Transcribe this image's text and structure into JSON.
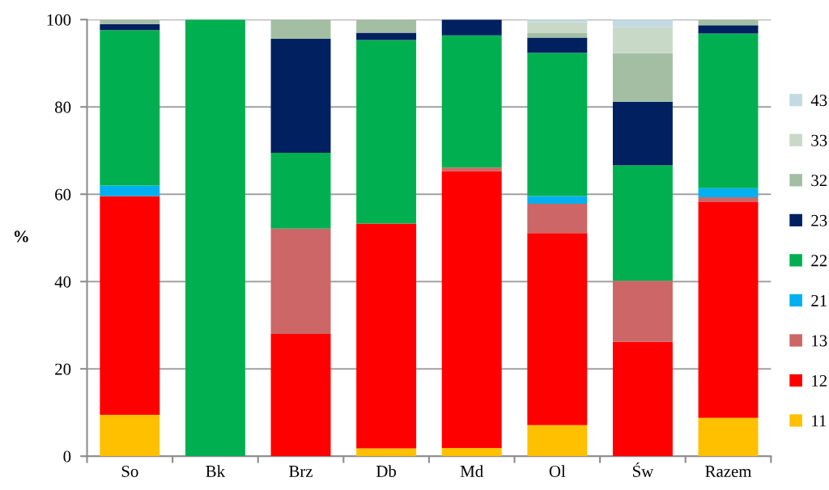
{
  "chart_data": {
    "type": "bar",
    "stacked": true,
    "ylabel": "%",
    "categories": [
      "So",
      "Bk",
      "Brz",
      "Db",
      "Md",
      "Ol",
      "Św",
      "Razem"
    ],
    "series": [
      {
        "name": "11",
        "color": "#ffc000",
        "values": [
          9.5,
          null,
          null,
          1.8,
          1.9,
          7.1,
          null,
          8.8
        ]
      },
      {
        "name": "12",
        "color": "#ff0000",
        "values": [
          50.1,
          null,
          28.0,
          51.5,
          63.4,
          44.0,
          26.2,
          49.4
        ]
      },
      {
        "name": "13",
        "color": "#cd6666",
        "values": [
          null,
          null,
          24.1,
          null,
          0.8,
          6.7,
          14.0,
          1.1
        ]
      },
      {
        "name": "21",
        "color": "#00b0f0",
        "values": [
          2.4,
          null,
          null,
          null,
          null,
          1.8,
          null,
          2.1
        ]
      },
      {
        "name": "22",
        "color": "#00b050",
        "values": [
          35.6,
          100,
          17.4,
          42.0,
          30.3,
          32.8,
          26.4,
          35.4
        ]
      },
      {
        "name": "23",
        "color": "#002060",
        "values": [
          1.4,
          null,
          26.1,
          1.7,
          3.6,
          3.5,
          14.6,
          1.9
        ]
      },
      {
        "name": "32",
        "color": "#a4bea4",
        "values": [
          1.0,
          null,
          4.4,
          3.0,
          null,
          1.0,
          11.1,
          1.3
        ]
      },
      {
        "name": "33",
        "color": "#c8d9c8",
        "values": [
          null,
          null,
          null,
          null,
          null,
          2.5,
          6.0,
          null
        ]
      },
      {
        "name": "43",
        "color": "#c2dae2",
        "values": [
          null,
          null,
          null,
          null,
          null,
          0.6,
          1.7,
          null
        ]
      }
    ],
    "ylim": [
      0,
      100
    ],
    "yticks": [
      0,
      20,
      40,
      60,
      80,
      100
    ],
    "grid": "y",
    "legend": "right"
  }
}
